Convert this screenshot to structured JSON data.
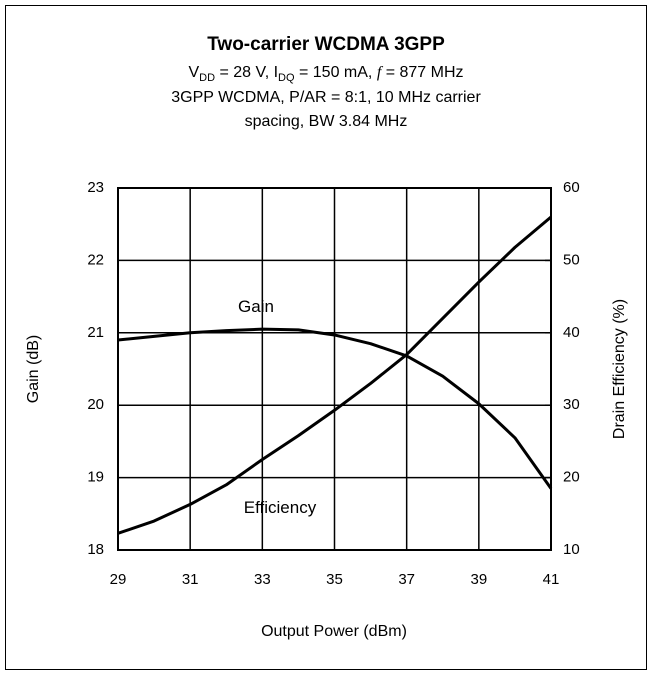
{
  "chart_data": {
    "type": "line",
    "title": "Two-carrier WCDMA 3GPP",
    "subtitle_parts": [
      "V",
      "DD",
      " = 28 V, I",
      "DQ",
      " = 150 mA, ",
      "f",
      " = 877 MHz"
    ],
    "notes": [
      "3GPP WCDMA, P/AR = 8:1, 10 MHz carrier",
      "spacing, BW 3.84 MHz"
    ],
    "x_label": "Output Power (dBm)",
    "y_label": "Gain (dB)",
    "y2_label": "Drain Efficiency (%)",
    "x": [
      29,
      30,
      31,
      32,
      33,
      34,
      35,
      36,
      37,
      38,
      39,
      40,
      41
    ],
    "series": [
      {
        "name": "Gain",
        "color": "#000000",
        "values": [
          20.9,
          20.95,
          21.0,
          21.03,
          21.05,
          21.04,
          20.97,
          20.85,
          20.68,
          20.4,
          20.02,
          19.55,
          18.85
        ]
      },
      {
        "name": "Efficiency",
        "color": "#000000",
        "axis": "y2",
        "values": [
          12.3,
          14.0,
          16.3,
          19.0,
          22.5,
          25.8,
          29.3,
          33.0,
          37.0,
          42.0,
          47.0,
          51.8,
          56.0
        ]
      }
    ],
    "xlim": [
      29,
      41
    ],
    "xticks": [
      29,
      31,
      33,
      35,
      37,
      39,
      41
    ],
    "ylim": [
      18,
      23
    ],
    "yticks": [
      18,
      19,
      20,
      21,
      22,
      23
    ],
    "y2lim": [
      10,
      60
    ],
    "y2ticks": [
      10,
      20,
      30,
      40,
      50,
      60
    ],
    "grid": true
  }
}
